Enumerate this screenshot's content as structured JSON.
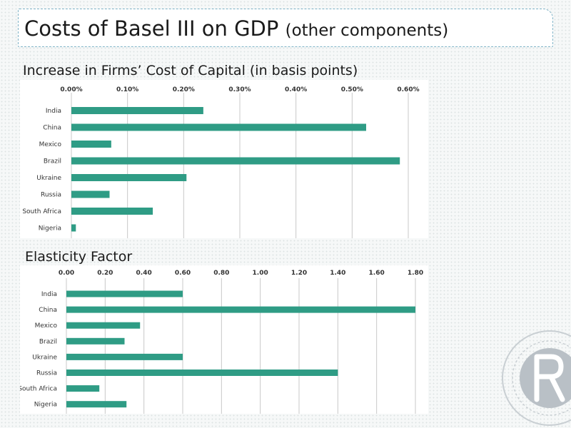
{
  "slide": {
    "title": "Costs of Basel III on GDP",
    "title_suffix": "(other components)"
  },
  "colors": {
    "bar": "#2f9c85",
    "grid": "#c8c8c8"
  },
  "chart_data": [
    {
      "type": "bar",
      "orientation": "horizontal",
      "title": "Increase in Firms’ Cost of Capital (in basis points)",
      "categories": [
        "India",
        "China",
        "Mexico",
        "Brazil",
        "Ukraine",
        "Russia",
        "South Africa",
        "Nigeria"
      ],
      "values": [
        0.00235,
        0.00525,
        0.00071,
        0.00585,
        0.00205,
        0.00068,
        0.00145,
        8e-05
      ],
      "xlim": [
        0,
        0.006
      ],
      "ticks": [
        0,
        0.001,
        0.002,
        0.003,
        0.004,
        0.005,
        0.006
      ],
      "tick_labels": [
        "0.00%",
        "0.10%",
        "0.20%",
        "0.30%",
        "0.40%",
        "0.50%",
        "0.60%"
      ],
      "axis_position": "top",
      "grid": true
    },
    {
      "type": "bar",
      "orientation": "horizontal",
      "title": "Elasticity Factor",
      "categories": [
        "India",
        "China",
        "Mexico",
        "Brazil",
        "Ukraine",
        "Russia",
        "South Africa",
        "Nigeria"
      ],
      "values": [
        0.6,
        1.8,
        0.38,
        0.3,
        0.6,
        1.4,
        0.17,
        0.31
      ],
      "xlim": [
        0,
        1.8
      ],
      "ticks": [
        0,
        0.2,
        0.4,
        0.6,
        0.8,
        1.0,
        1.2,
        1.4,
        1.6,
        1.8
      ],
      "tick_labels": [
        "0.00",
        "0.20",
        "0.40",
        "0.60",
        "0.80",
        "1.00",
        "1.20",
        "1.40",
        "1.60",
        "1.80"
      ],
      "axis_position": "top",
      "grid": true
    }
  ]
}
